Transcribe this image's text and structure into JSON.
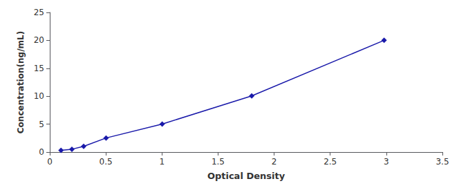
{
  "chart_data": {
    "type": "line",
    "x": [
      0.1,
      0.197,
      0.302,
      0.502,
      1.002,
      1.8,
      2.98
    ],
    "values": [
      0.31,
      0.51,
      1.02,
      2.52,
      5.02,
      10.05,
      20.01
    ],
    "xlabel": "Optical Density",
    "ylabel": "Concentration(ng/mL)",
    "xlim": [
      0,
      3.5
    ],
    "ylim": [
      0,
      25
    ],
    "xticks": [
      0,
      0.5,
      1,
      1.5,
      2,
      2.5,
      3,
      3.5
    ],
    "yticks": [
      0,
      5,
      10,
      15,
      20,
      25
    ],
    "color": "#1a1aaa",
    "marker": "diamond",
    "line_style": "solid",
    "grid": false
  }
}
